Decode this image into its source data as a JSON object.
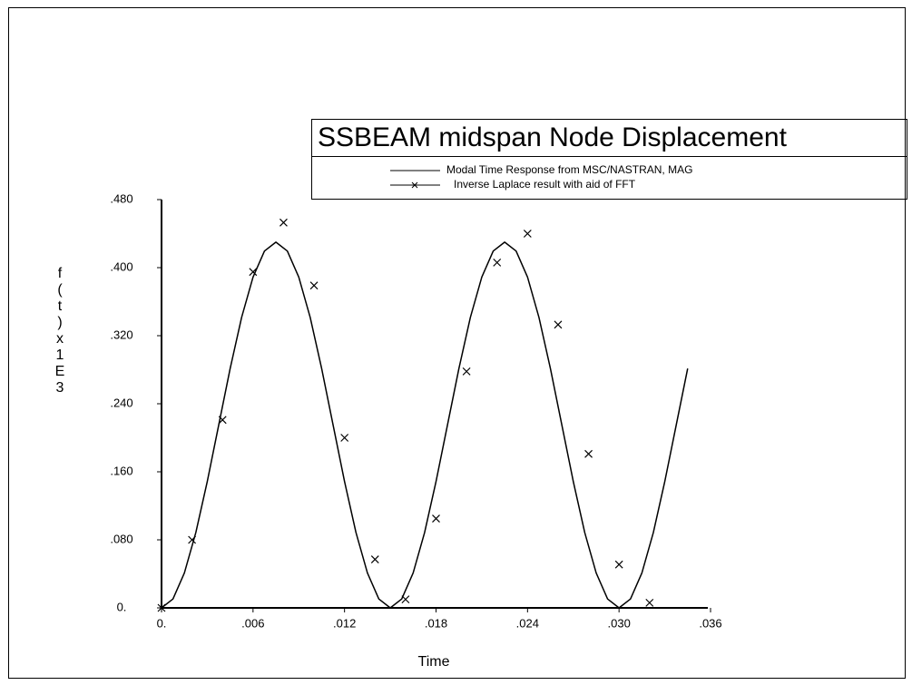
{
  "chart_data": {
    "type": "line",
    "title": "SSBEAM midspan Node Displacement",
    "x_label": "Time",
    "y_label": "f(t)x1E3",
    "xlim": [
      0,
      0.036
    ],
    "ylim": [
      0,
      0.48
    ],
    "xticks": [
      {
        "value": 0,
        "label": "0."
      },
      {
        "value": 0.006,
        "label": ".006"
      },
      {
        "value": 0.012,
        "label": ".012"
      },
      {
        "value": 0.018,
        "label": ".018"
      },
      {
        "value": 0.024,
        "label": ".024"
      },
      {
        "value": 0.03,
        "label": ".030"
      },
      {
        "value": 0.036,
        "label": ".036"
      }
    ],
    "yticks": [
      {
        "value": 0,
        "label": "0."
      },
      {
        "value": 0.08,
        "label": ".080"
      },
      {
        "value": 0.16,
        "label": ".160"
      },
      {
        "value": 0.24,
        "label": ".240"
      },
      {
        "value": 0.32,
        "label": ".320"
      },
      {
        "value": 0.4,
        "label": ".400"
      },
      {
        "value": 0.48,
        "label": ".480"
      }
    ],
    "series": [
      {
        "name": "Modal Time Response from MSC/NASTRAN, MAG",
        "color": "#000000",
        "marker": "none",
        "x": [
          0,
          0.00075,
          0.0015,
          0.00225,
          0.003,
          0.00375,
          0.0045,
          0.00525,
          0.006,
          0.00675,
          0.0075,
          0.00825,
          0.009,
          0.00975,
          0.0105,
          0.01125,
          0.012,
          0.01275,
          0.0135,
          0.01425,
          0.015,
          0.01575,
          0.0165,
          0.01725,
          0.018,
          0.01875,
          0.0195,
          0.02025,
          0.021,
          0.02175,
          0.0225,
          0.02325,
          0.024,
          0.02475,
          0.0255,
          0.02625,
          0.027,
          0.02775,
          0.0285,
          0.02925,
          0.03,
          0.03075,
          0.0315,
          0.03225,
          0.033,
          0.03375,
          0.0345
        ],
        "values": [
          0,
          0.0105,
          0.0411,
          0.0886,
          0.1486,
          0.215,
          0.2814,
          0.3414,
          0.3889,
          0.4195,
          0.43,
          0.4195,
          0.3889,
          0.3414,
          0.2814,
          0.215,
          0.1486,
          0.0886,
          0.0411,
          0.0105,
          0,
          0.0105,
          0.0411,
          0.0886,
          0.1486,
          0.215,
          0.2814,
          0.3414,
          0.3889,
          0.4195,
          0.43,
          0.4195,
          0.3889,
          0.3414,
          0.2814,
          0.215,
          0.1486,
          0.0886,
          0.0411,
          0.0105,
          0,
          0.0105,
          0.0411,
          0.0886,
          0.1486,
          0.215,
          0.2814
        ]
      },
      {
        "name": "Inverse Laplace result with aid of FFT",
        "color": "#000000",
        "marker": "x",
        "x": [
          0,
          0.002,
          0.004,
          0.006,
          0.008,
          0.01,
          0.012,
          0.014,
          0.016,
          0.018,
          0.02,
          0.022,
          0.024,
          0.026,
          0.028,
          0.03,
          0.032
        ],
        "values": [
          0,
          0.08,
          0.221,
          0.395,
          0.453,
          0.379,
          0.2,
          0.057,
          0.01,
          0.105,
          0.278,
          0.406,
          0.44,
          0.333,
          0.181,
          0.051,
          0.006
        ]
      }
    ]
  }
}
